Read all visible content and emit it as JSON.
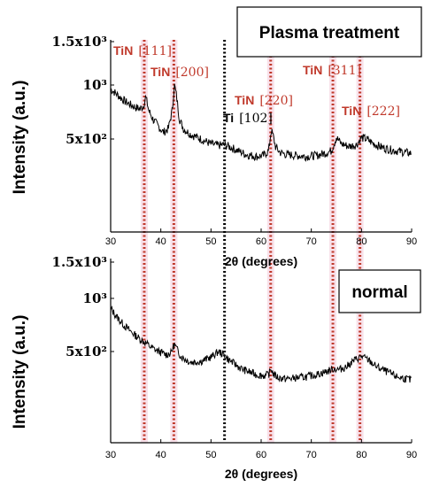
{
  "chart_data": [
    {
      "type": "line",
      "panel": "top",
      "title_box": "Plasma treatment",
      "xlabel": "2θ (degrees)",
      "ylabel": "Intensity (a.u.)",
      "xlim": [
        30,
        90
      ],
      "x_ticks": [
        30,
        40,
        50,
        60,
        70,
        80,
        90
      ],
      "x_tick_labels": [
        "30",
        "40",
        "50",
        "60",
        "70",
        "80",
        "90"
      ],
      "y_scale": "log",
      "y_ticks": [
        500,
        1000,
        1500
      ],
      "y_tick_labels": [
        "5x10²",
        "10³",
        "1.5x10³"
      ],
      "series": [
        {
          "x": [
            30,
            31,
            32,
            33,
            34,
            35,
            35.8,
            36.5,
            37,
            37.6,
            38.5,
            39.5,
            40.5,
            41.5,
            42.3,
            42.7,
            43.1,
            43.7,
            44.5,
            46,
            48,
            50,
            51.5,
            52.5,
            53.5,
            55,
            57,
            59,
            60.5,
            61.5,
            62,
            62.4,
            62.9,
            63.8,
            65,
            67,
            69,
            71,
            72.5,
            74,
            75,
            76,
            77.5,
            79,
            80,
            81,
            82.5,
            84,
            86,
            88,
            90
          ],
          "y": [
            950,
            900,
            850,
            805,
            775,
            750,
            735,
            760,
            860,
            720,
            640,
            590,
            545,
            570,
            730,
            1000,
            880,
            650,
            570,
            530,
            500,
            470,
            460,
            465,
            455,
            435,
            410,
            400,
            405,
            430,
            560,
            520,
            450,
            420,
            410,
            405,
            400,
            405,
            415,
            430,
            510,
            470,
            455,
            465,
            510,
            500,
            470,
            450,
            435,
            425,
            415
          ]
        }
      ]
    },
    {
      "type": "line",
      "panel": "bottom",
      "title_box": "normal",
      "xlabel": "2θ (degrees)",
      "ylabel": "Intensity (a.u.)",
      "xlim": [
        30,
        90
      ],
      "x_ticks": [
        30,
        40,
        50,
        60,
        70,
        80,
        90
      ],
      "x_tick_labels": [
        "30",
        "40",
        "50",
        "60",
        "70",
        "80",
        "90"
      ],
      "y_scale": "log",
      "y_ticks": [
        500,
        1000,
        1500
      ],
      "y_tick_labels": [
        "5x10²",
        "10³",
        "1.5x10³"
      ],
      "series": [
        {
          "x": [
            30,
            31,
            32,
            33,
            34,
            35,
            36,
            37,
            38,
            39,
            40,
            41,
            42,
            42.7,
            43.3,
            44,
            45,
            46,
            48,
            50,
            51.5,
            52.5,
            53.5,
            55,
            56,
            57.5,
            59,
            60.5,
            61.5,
            62,
            62.5,
            63.5,
            65,
            67,
            69,
            71,
            73,
            74.5,
            75.5,
            77,
            78.5,
            80,
            81.5,
            83,
            85,
            87,
            89,
            90
          ],
          "y": [
            880,
            800,
            740,
            690,
            650,
            615,
            585,
            560,
            530,
            510,
            495,
            480,
            490,
            550,
            510,
            470,
            450,
            435,
            440,
            465,
            500,
            480,
            450,
            420,
            400,
            385,
            370,
            365,
            370,
            400,
            370,
            355,
            350,
            355,
            360,
            370,
            385,
            400,
            395,
            410,
            445,
            470,
            445,
            410,
            385,
            360,
            350,
            345
          ]
        }
      ]
    }
  ],
  "peak_markers": [
    {
      "phase": "TiN",
      "hkl": "[111]",
      "two_theta": 36.7,
      "color": "#c0392b"
    },
    {
      "phase": "TiN",
      "hkl": "[200]",
      "two_theta": 42.6,
      "color": "#c0392b"
    },
    {
      "phase": "Ti",
      "hkl": "[102]",
      "two_theta": 52.7,
      "color": "#000000"
    },
    {
      "phase": "TiN",
      "hkl": "[220]",
      "two_theta": 61.9,
      "color": "#c0392b"
    },
    {
      "phase": "TiN",
      "hkl": "[311]",
      "two_theta": 74.3,
      "color": "#c0392b"
    },
    {
      "phase": "TiN",
      "hkl": "[222]",
      "two_theta": 79.7,
      "color": "#c0392b"
    }
  ],
  "colors": {
    "trace": "#000000",
    "tin_line": "#c0392b",
    "tin_band": "#f6d7e3",
    "ti_line": "#000000"
  }
}
